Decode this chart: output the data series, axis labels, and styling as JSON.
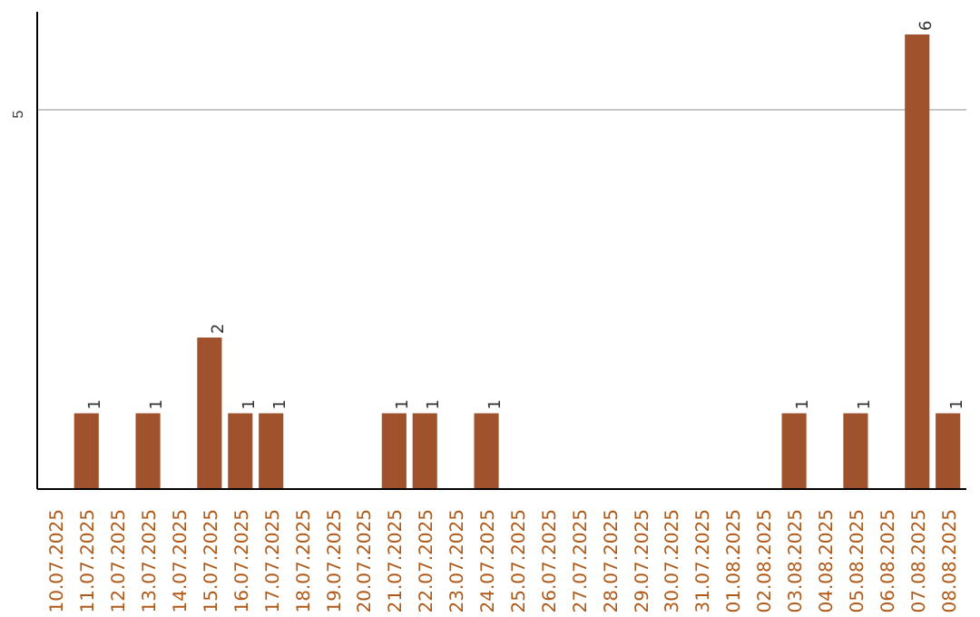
{
  "chart_data": {
    "type": "bar",
    "categories": [
      "10.07.2025",
      "11.07.2025",
      "12.07.2025",
      "13.07.2025",
      "14.07.2025",
      "15.07.2025",
      "16.07.2025",
      "17.07.2025",
      "18.07.2025",
      "19.07.2025",
      "20.07.2025",
      "21.07.2025",
      "22.07.2025",
      "23.07.2025",
      "24.07.2025",
      "25.07.2025",
      "26.07.2025",
      "27.07.2025",
      "28.07.2025",
      "29.07.2025",
      "30.07.2025",
      "31.07.2025",
      "01.08.2025",
      "02.08.2025",
      "03.08.2025",
      "04.08.2025",
      "05.08.2025",
      "06.08.2025",
      "07.08.2025",
      "08.08.2025"
    ],
    "values": [
      0,
      1,
      0,
      1,
      0,
      2,
      1,
      1,
      0,
      0,
      0,
      1,
      1,
      0,
      1,
      0,
      0,
      0,
      0,
      0,
      0,
      0,
      0,
      0,
      1,
      0,
      1,
      0,
      6,
      1
    ],
    "value_labels": [
      null,
      "1",
      null,
      "1",
      null,
      "2",
      "1",
      "1",
      null,
      null,
      null,
      "1",
      "1",
      null,
      "1",
      null,
      null,
      null,
      null,
      null,
      null,
      null,
      null,
      null,
      "1",
      null,
      "1",
      null,
      "6",
      "1"
    ],
    "color": "#a0522d",
    "ylim": [
      0,
      6.3
    ],
    "yticks": [
      5
    ],
    "grid": "y"
  }
}
